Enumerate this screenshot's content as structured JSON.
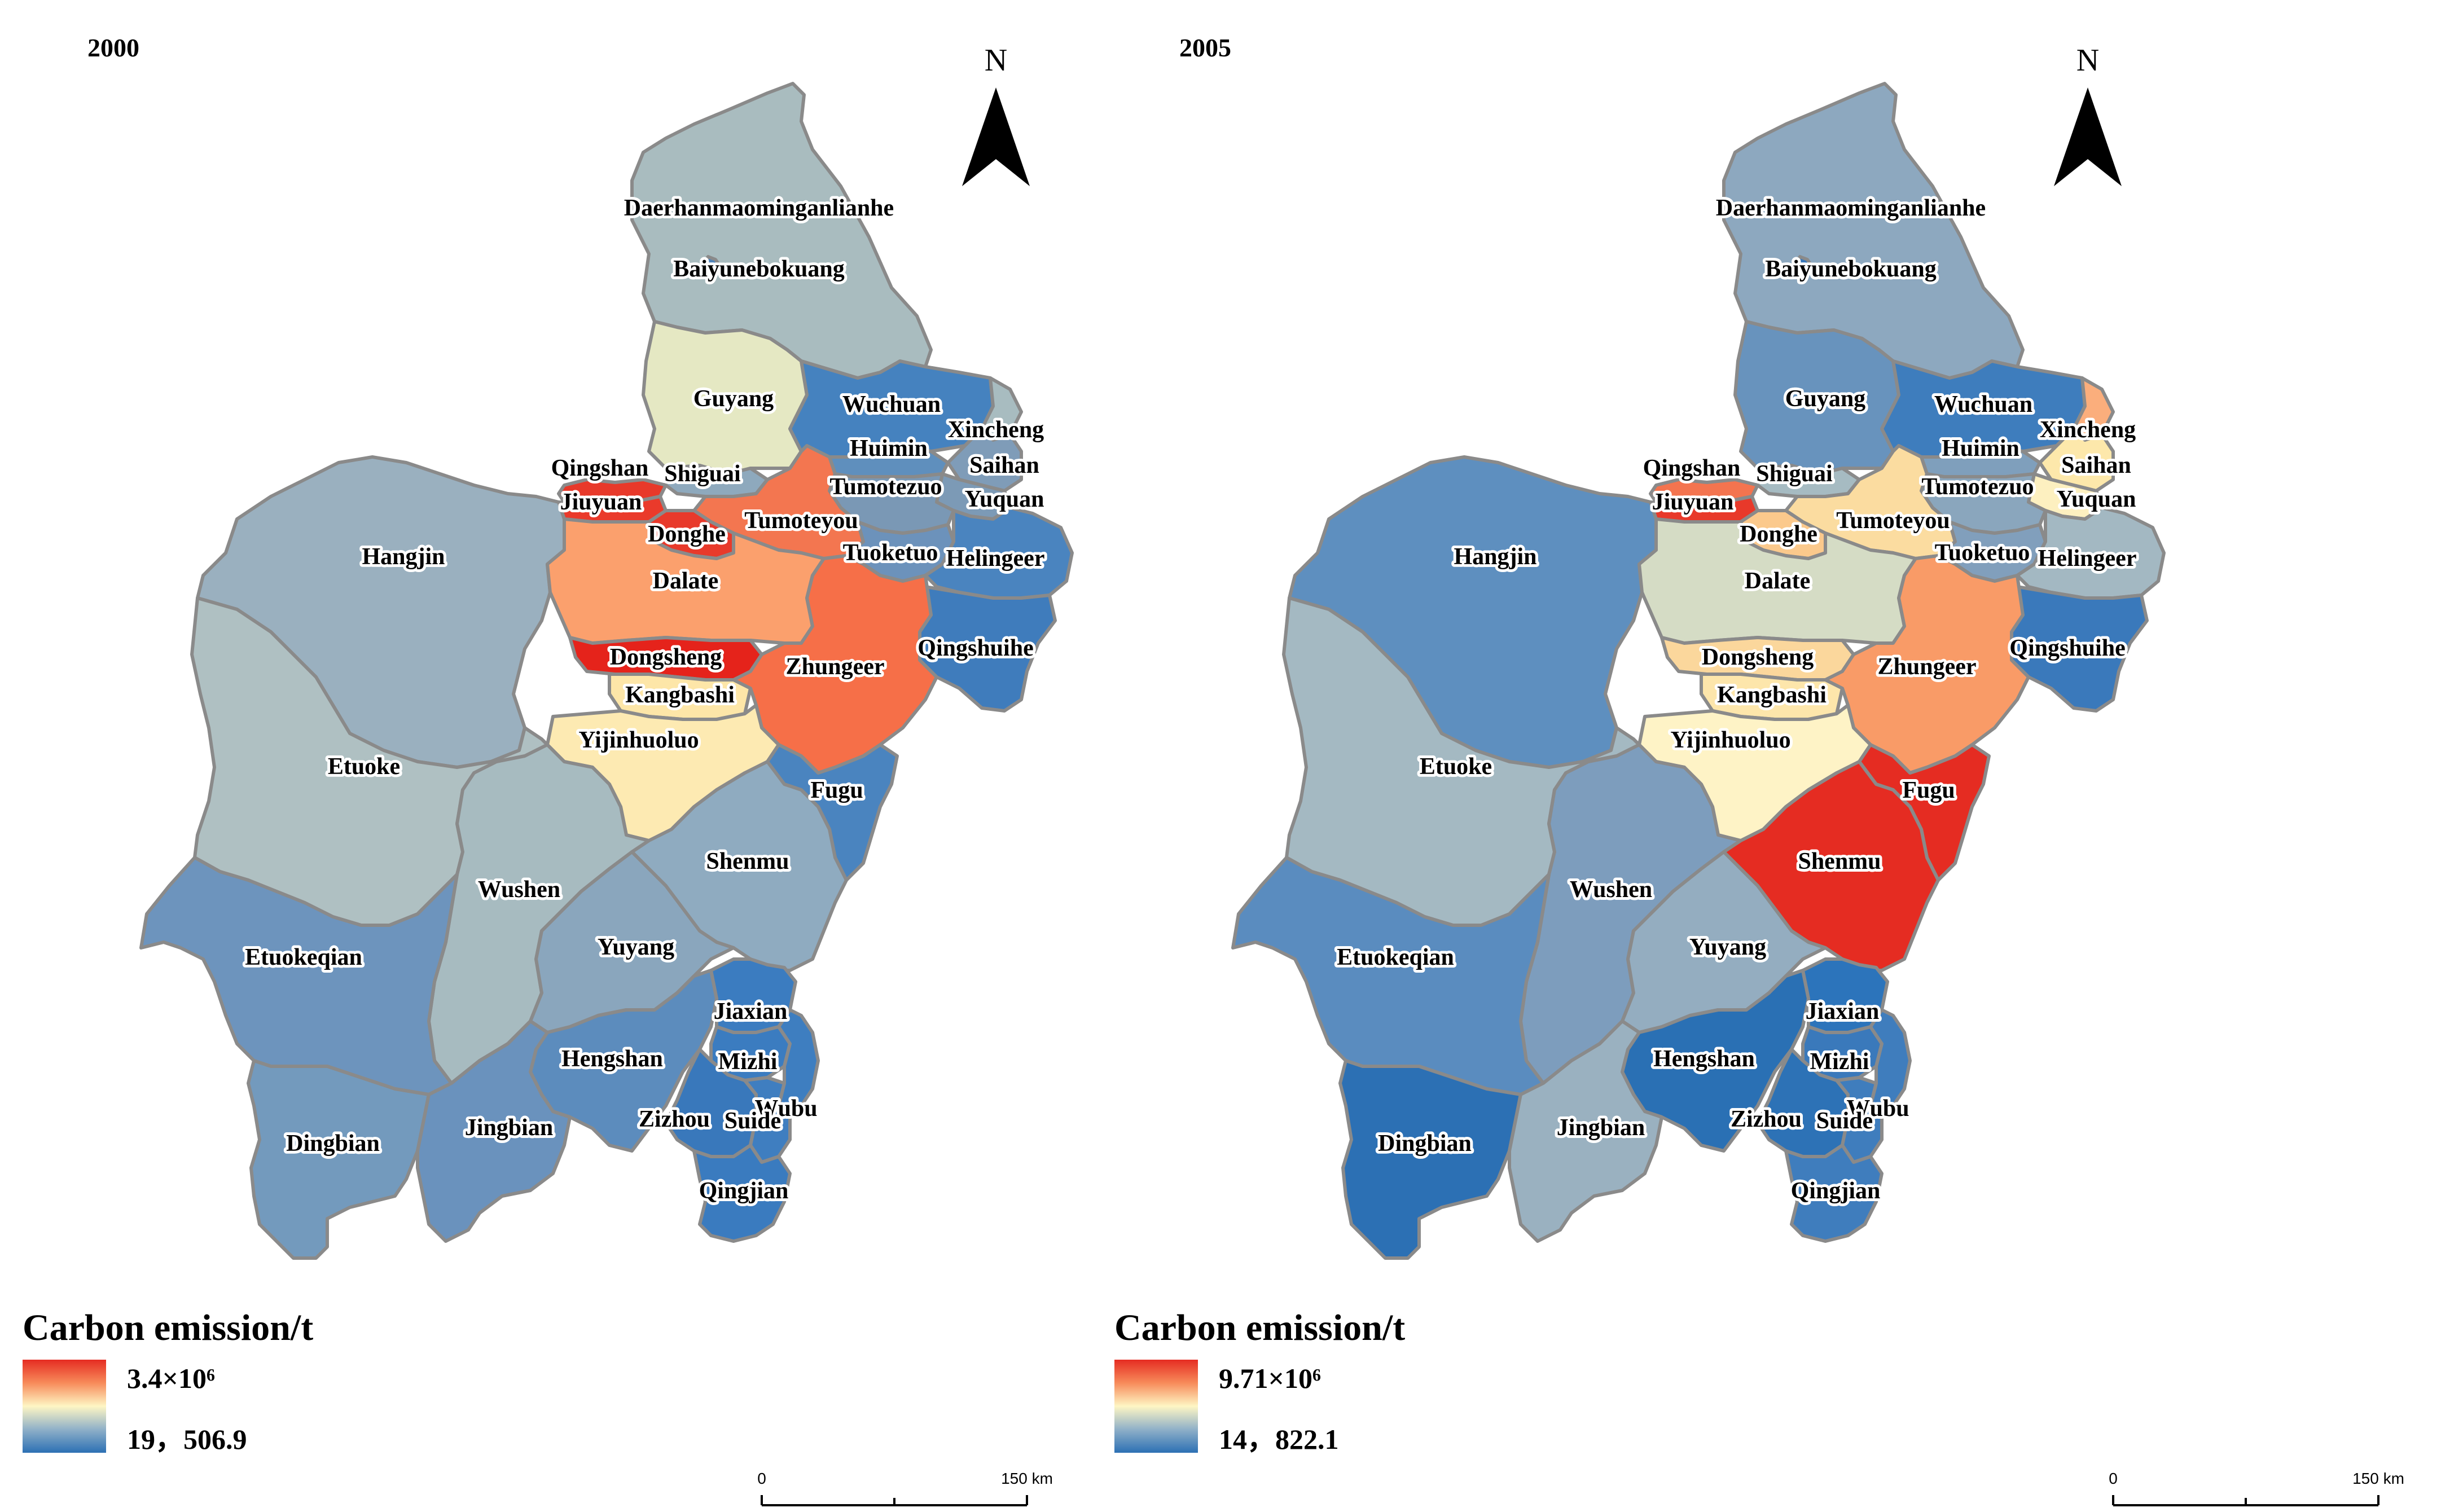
{
  "maps": [
    {
      "year": "2000",
      "north_label": "N",
      "legend": {
        "title": "Carbon emission/t",
        "max_label": "3.4×10⁶",
        "min_label": "19，506.9"
      },
      "scale": {
        "zero": "0",
        "end": "150 km"
      },
      "colors": {
        "Daerhanmaominganlianhe": "#a9bcbf",
        "Baiyunebokuang": "#4f84ba",
        "Guyang": "#e5e8c3",
        "Wuchuan": "#4582bf",
        "Xincheng": "#a8bcc0",
        "Saihan": "#7f9cb8",
        "Huimin": "#5f8fbd",
        "Yuquan": "#7c9ab6",
        "Qingshan": "#e8392a",
        "Shiguai": "#8ea9bd",
        "Jiuyuan": "#ea3a2b",
        "Tumotezuo": "#7a98b5",
        "Tumoteyou": "#f37650",
        "Donghe": "#e83a2b",
        "Tuoketuo": "#6c92bb",
        "Helingeer": "#4a84bf",
        "Hangjin": "#9ab0bf",
        "Dalate": "#fba06d",
        "Qingshuihe": "#3f7cbc",
        "Dongsheng": "#e5231b",
        "Zhungeer": "#f66f48",
        "Kangbashi": "#fde6a8",
        "Yijinhuoluo": "#fdeab2",
        "Fugu": "#4a84bf",
        "Etuoke": "#afc0c2",
        "Wushen": "#a7bbc0",
        "Shenmu": "#8fabc0",
        "Yuyang": "#8aa6bd",
        "Etuokeqian": "#6d94bd",
        "Jiaxian": "#3b7cc0",
        "Hengshan": "#5c8cbd",
        "Mizhi": "#3b7cc0",
        "Wubu": "#3e7ec0",
        "Zizhou": "#3978bb",
        "Suide": "#3f7ec0",
        "Dingbian": "#739abd",
        "Jingbian": "#6a92bd",
        "Qingjian": "#3a7bbf"
      }
    },
    {
      "year": "2005",
      "north_label": "N",
      "legend": {
        "title": "Carbon emission/t",
        "max_label": "9.71×10⁶",
        "min_label": "14，822.1"
      },
      "scale": {
        "zero": "0",
        "end": "150 km"
      },
      "colors": {
        "Daerhanmaominganlianhe": "#8da8bf",
        "Baiyunebokuang": "#3a79bb",
        "Guyang": "#6893bd",
        "Wuchuan": "#3e7dbd",
        "Xincheng": "#fbae7c",
        "Saihan": "#fde8ab",
        "Huimin": "#7f9fbc",
        "Yuquan": "#fdf0c0",
        "Qingshan": "#f4744f",
        "Shiguai": "#a6bbc2",
        "Jiuyuan": "#e8392a",
        "Tumotezuo": "#8aa6bd",
        "Tumoteyou": "#fbdca0",
        "Donghe": "#fbc98c",
        "Tuoketuo": "#819fbc",
        "Helingeer": "#a3b8c2",
        "Hangjin": "#5e8fbf",
        "Dalate": "#d5dcc5",
        "Qingshuihe": "#3a79bb",
        "Dongsheng": "#fbd79c",
        "Zhungeer": "#f99b67",
        "Kangbashi": "#fde6ab",
        "Yijinhuoluo": "#fef3c6",
        "Fugu": "#e52c22",
        "Etuoke": "#a4b9c2",
        "Wushen": "#7d9dbd",
        "Shenmu": "#e52c22",
        "Yuyang": "#94adc0",
        "Etuokeqian": "#5a8cbf",
        "Jiaxian": "#2c74bb",
        "Hengshan": "#2a70b4",
        "Mizhi": "#3a79bb",
        "Wubu": "#3f7dbd",
        "Zizhou": "#2d72b6",
        "Suide": "#3f7dbd",
        "Dingbian": "#2c70b4",
        "Jingbian": "#9ab1c0",
        "Qingjian": "#3f7dbd"
      }
    }
  ]
}
